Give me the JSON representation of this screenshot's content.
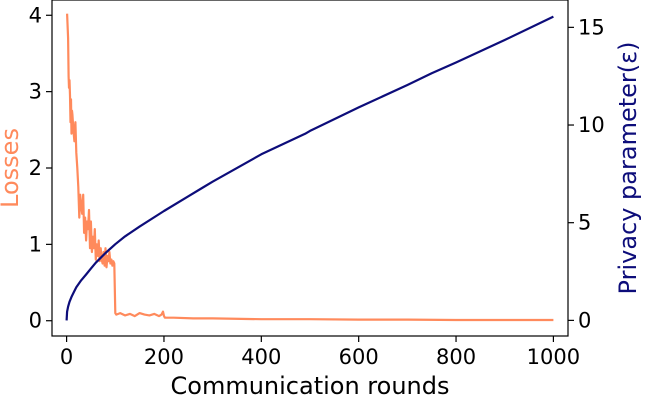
{
  "chart_data": {
    "type": "line",
    "xlabel": "Communication rounds",
    "xlim": [
      -30,
      1030
    ],
    "xticks": [
      0,
      200,
      400,
      600,
      800,
      1000
    ],
    "y_left": {
      "label": "Losses",
      "color": "#FF8A5C",
      "lim": [
        -0.2,
        4.2
      ],
      "ticks": [
        0,
        1,
        2,
        3,
        4
      ]
    },
    "y_right": {
      "label": "Privacy parameter(ε)",
      "color": "#0D0D7A",
      "lim": [
        -0.8,
        16.4
      ],
      "ticks": [
        0,
        5,
        10,
        15
      ]
    },
    "series": [
      {
        "name": "Losses",
        "axis": "left",
        "color": "#FF8A5C",
        "x": [
          1,
          3,
          4,
          5,
          6,
          7,
          8,
          9,
          10,
          11,
          12,
          14,
          16,
          18,
          20,
          22,
          24,
          26,
          28,
          30,
          32,
          34,
          36,
          38,
          40,
          42,
          44,
          46,
          48,
          50,
          52,
          54,
          56,
          58,
          60,
          62,
          64,
          66,
          68,
          70,
          72,
          74,
          76,
          78,
          80,
          82,
          84,
          86,
          88,
          90,
          92,
          94,
          96,
          98,
          100,
          102,
          110,
          120,
          130,
          140,
          150,
          160,
          170,
          180,
          190,
          195,
          198,
          200,
          202,
          220,
          260,
          300,
          400,
          500,
          600,
          700,
          800,
          900,
          1000
        ],
        "y": [
          4.02,
          3.7,
          3.2,
          3.05,
          3.15,
          2.95,
          2.6,
          2.9,
          2.45,
          2.75,
          2.7,
          2.5,
          2.35,
          2.6,
          2.2,
          2.0,
          1.75,
          1.35,
          1.65,
          1.5,
          1.4,
          1.65,
          1.15,
          1.35,
          1.05,
          1.3,
          1.2,
          1.45,
          0.95,
          1.3,
          0.9,
          1.1,
          0.95,
          1.2,
          0.8,
          1.0,
          0.85,
          1.05,
          0.78,
          0.95,
          0.8,
          0.75,
          0.9,
          0.72,
          0.95,
          0.7,
          0.85,
          0.78,
          0.9,
          0.75,
          0.8,
          0.72,
          0.78,
          0.75,
          0.1,
          0.08,
          0.1,
          0.07,
          0.09,
          0.06,
          0.1,
          0.08,
          0.07,
          0.09,
          0.06,
          0.08,
          0.12,
          0.06,
          0.04,
          0.04,
          0.03,
          0.03,
          0.02,
          0.02,
          0.015,
          0.015,
          0.01,
          0.01,
          0.01
        ]
      },
      {
        "name": "Privacy parameter(ε)",
        "axis": "right",
        "color": "#0D0D7A",
        "x": [
          0,
          1,
          3,
          6,
          10,
          15,
          20,
          30,
          40,
          50,
          60,
          80,
          100,
          120,
          150,
          200,
          250,
          280,
          300,
          400,
          490,
          500,
          600,
          700,
          750,
          800,
          900,
          1000
        ],
        "y": [
          0.0,
          0.45,
          0.7,
          0.95,
          1.2,
          1.45,
          1.7,
          2.05,
          2.35,
          2.65,
          2.95,
          3.45,
          3.9,
          4.3,
          4.8,
          5.6,
          6.35,
          6.8,
          7.1,
          8.5,
          9.55,
          9.7,
          10.9,
          12.05,
          12.65,
          13.2,
          14.35,
          15.55
        ]
      }
    ]
  }
}
